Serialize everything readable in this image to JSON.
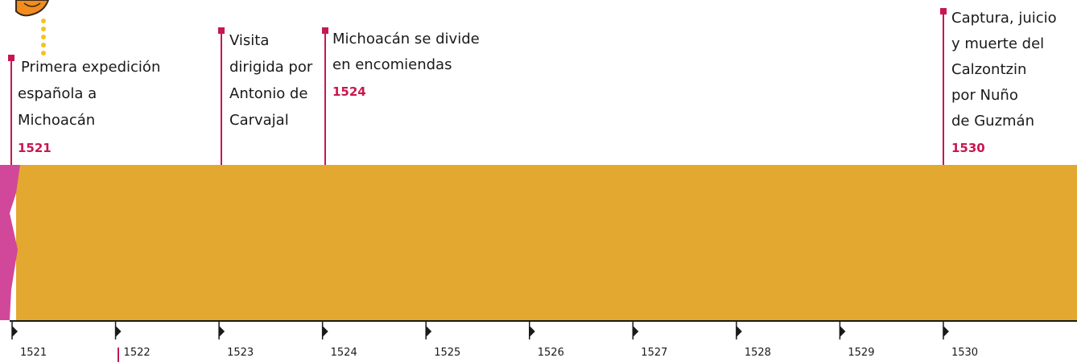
{
  "events": [
    {
      "lines": [
        "Primera expedición",
        "española a",
        "Michoacán"
      ],
      "year": "1521"
    },
    {
      "lines": [
        "Visita",
        "dirigida por",
        "Antonio de",
        "Carvajal"
      ]
    },
    {
      "lines": [
        "Michoacán se divide",
        "en encomiendas"
      ],
      "year": "1524"
    },
    {
      "lines": [
        "Captura, juicio",
        "y muerte del",
        "Calzontzin",
        "por Nuño",
        "de Guzmán"
      ],
      "year": "1530"
    }
  ],
  "axis": {
    "labels": [
      "1521",
      "1522",
      "1523",
      "1524",
      "1525",
      "1526",
      "1527",
      "1528",
      "1529",
      "1530"
    ]
  }
}
